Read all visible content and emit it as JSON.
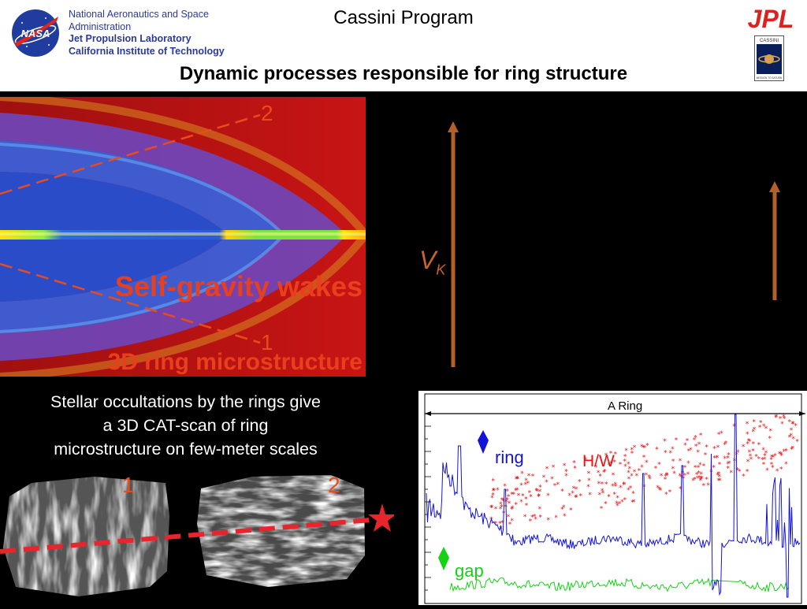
{
  "header": {
    "agency_line1": "National Aeronautics and Space",
    "agency_line2": "Administration",
    "lab": "Jet Propulsion Laboratory",
    "institute": "California Institute of Technology",
    "program": "Cassini Program",
    "jpl_logo": "JPL",
    "cassini_badge": "CASSINI",
    "cassini_badge_sub": "MISSION TO SATURN"
  },
  "slide": {
    "title": "Dynamic processes responsible for ring structure"
  },
  "ring_image": {
    "wake_label": "Self-gravity wakes",
    "micro_label": "3D ring microstructure",
    "cut_top": "2",
    "cut_bottom": "1"
  },
  "velocity": {
    "symbol": "V",
    "subscript": "K",
    "arrow_color": "#b4602a"
  },
  "caption": {
    "line1": "Stellar occultations by the rings give",
    "line2": "a 3D CAT-scan of ring",
    "line3": "microstructure on few-meter scales"
  },
  "cat_scan": {
    "label_left": "1",
    "label_right": "2"
  },
  "plot": {
    "region_label": "A Ring",
    "ring_label": "ring",
    "hw_label": "H/W",
    "gap_label": "gap",
    "colors": {
      "ring": "#1414d8",
      "hw": "#e81414",
      "gap": "#14d214"
    }
  }
}
